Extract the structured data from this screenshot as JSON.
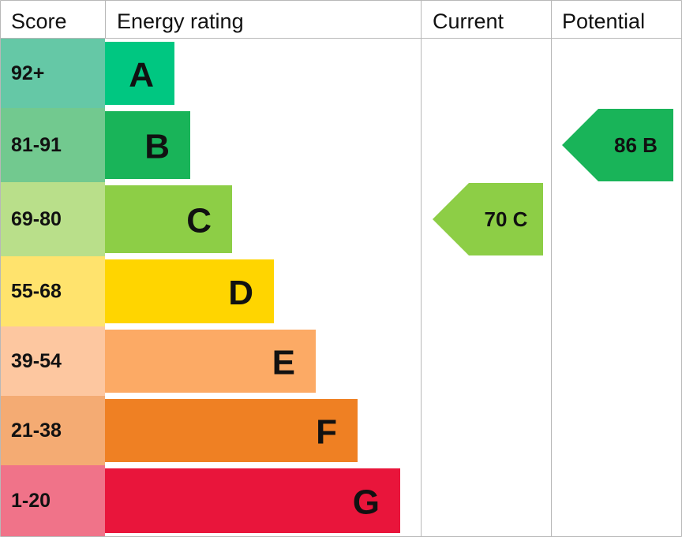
{
  "chart_data": {
    "type": "bar",
    "headers": {
      "score": "Score",
      "rating": "Energy rating",
      "current": "Current",
      "potential": "Potential"
    },
    "bands": [
      {
        "letter": "A",
        "range": "92+",
        "color": "#00C781",
        "score_bg": "#65C8A6"
      },
      {
        "letter": "B",
        "range": "81-91",
        "color": "#19B459",
        "score_bg": "#72C98F"
      },
      {
        "letter": "C",
        "range": "69-80",
        "color": "#8DCE46",
        "score_bg": "#B9DF8A"
      },
      {
        "letter": "D",
        "range": "55-68",
        "color": "#FFD500",
        "score_bg": "#FFE36D"
      },
      {
        "letter": "E",
        "range": "39-54",
        "color": "#FCAA65",
        "score_bg": "#FDC7A0"
      },
      {
        "letter": "F",
        "range": "21-38",
        "color": "#EF8023",
        "score_bg": "#F4AB73"
      },
      {
        "letter": "G",
        "range": "1-20",
        "color": "#E9153B",
        "score_bg": "#F07389"
      }
    ],
    "current": {
      "value": 70,
      "band": "C",
      "label": "70 C",
      "color": "#8DCE46"
    },
    "potential": {
      "value": 86,
      "band": "B",
      "label": "86 B",
      "color": "#19B459"
    }
  }
}
